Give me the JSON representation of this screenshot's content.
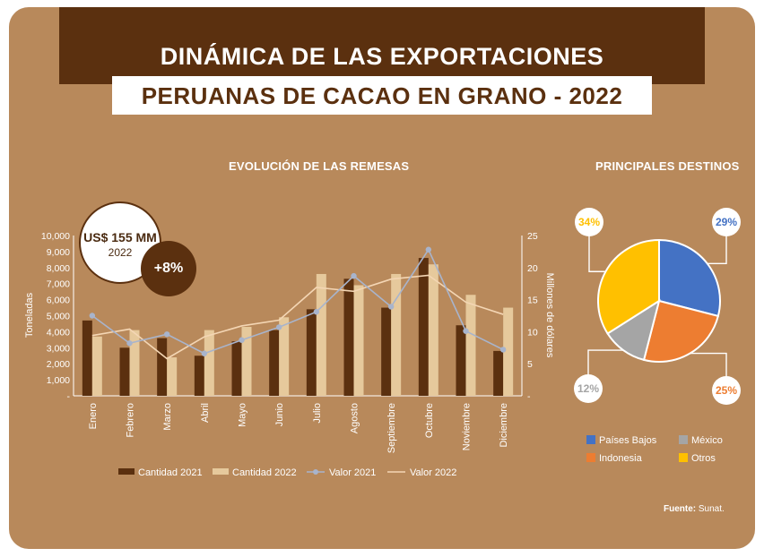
{
  "title_line1": "DINÁMICA DE LAS EXPORTACIONES",
  "title_line2": "PERUANAS DE CACAO EN GRANO - 2022",
  "left_title": "EVOLUCIÓN DE LAS REMESAS",
  "right_title": "PRINCIPALES DESTINOS",
  "bubble_value": "US$ 155 MM",
  "bubble_year": "2022",
  "bubble_change": "+8%",
  "source_label": "Fuente:",
  "source_value": "Sunat.",
  "colors": {
    "panel": "#b8895b",
    "brown_dark": "#5b300f",
    "cant2021": "#5b300f",
    "cant2022": "#e6c99c",
    "val2021": "#a8b4cc",
    "val2022": "#f4d6b4",
    "paises_bajos": "#4472c4",
    "indonesia": "#ed7d31",
    "mexico": "#a5a5a5",
    "otros": "#ffc000"
  },
  "chart_data": [
    {
      "type": "bar",
      "title": "EVOLUCIÓN DE LAS REMESAS",
      "categories": [
        "Enero",
        "Febrero",
        "Marzo",
        "Abril",
        "Mayo",
        "Junio",
        "Julio",
        "Agosto",
        "Septiembre",
        "Octubre",
        "Noviembre",
        "Diciembre"
      ],
      "ylabel": "Toneladas",
      "y2label": "Millones de dólares",
      "ylim": [
        0,
        10000
      ],
      "y2lim": [
        0,
        25
      ],
      "y_ticks": [
        "-",
        "1,000",
        "2,000",
        "3,000",
        "4,000",
        "5,000",
        "6,000",
        "7,000",
        "8,000",
        "9,000",
        "10,000"
      ],
      "y2_ticks": [
        "-",
        "5",
        "10",
        "15",
        "20",
        "25"
      ],
      "series": [
        {
          "name": "Cantidad 2021",
          "kind": "bar",
          "axis": "left",
          "values": [
            4700,
            3000,
            3600,
            2500,
            3400,
            4100,
            5400,
            7300,
            5500,
            8600,
            4400,
            2800
          ]
        },
        {
          "name": "Cantidad 2022",
          "kind": "bar",
          "axis": "left",
          "values": [
            3700,
            4100,
            2400,
            4100,
            4300,
            4900,
            7600,
            6900,
            7600,
            8200,
            6300,
            5500
          ]
        },
        {
          "name": "Valor 2021",
          "kind": "line",
          "axis": "right",
          "values": [
            12.5,
            8.2,
            9.6,
            6.6,
            8.7,
            10.7,
            13.1,
            18.7,
            13.9,
            22.8,
            10.1,
            7.2
          ]
        },
        {
          "name": "Valor 2022",
          "kind": "line",
          "axis": "right",
          "values": [
            9.4,
            10.4,
            5.8,
            9.2,
            10.9,
            11.8,
            16.9,
            16.3,
            18.2,
            18.8,
            14.6,
            12.7
          ]
        }
      ],
      "legend": "bottom"
    },
    {
      "type": "pie",
      "title": "PRINCIPALES DESTINOS",
      "labels": [
        "Países Bajos",
        "Indonesia",
        "México",
        "Otros"
      ],
      "values": [
        29,
        25,
        12,
        34
      ],
      "value_labels": [
        "29%",
        "25%",
        "12%",
        "34%"
      ],
      "legend_order": [
        "Países Bajos",
        "México",
        "Indonesia",
        "Otros"
      ],
      "legend": "bottom"
    }
  ]
}
